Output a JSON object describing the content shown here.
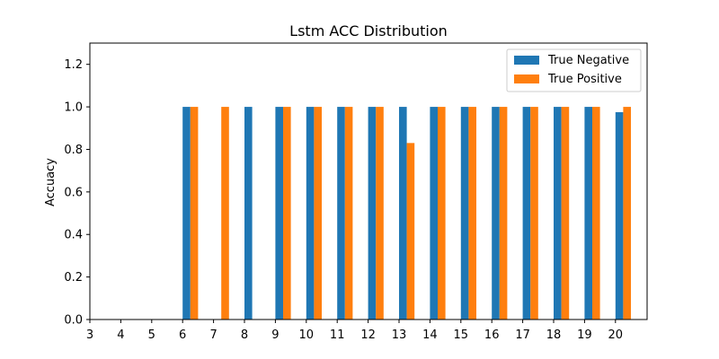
{
  "chart_data": {
    "type": "bar",
    "title": "Lstm ACC Distribution",
    "xlabel": "",
    "ylabel": "Accuacy",
    "categories": [
      "3",
      "4",
      "5",
      "6",
      "7",
      "8",
      "9",
      "10",
      "11",
      "12",
      "13",
      "14",
      "15",
      "16",
      "17",
      "18",
      "19",
      "20"
    ],
    "series": [
      {
        "name": "True Negative",
        "color": "#1f77b4",
        "values": [
          0,
          0,
          0,
          1.0,
          0,
          1.0,
          1.0,
          1.0,
          1.0,
          1.0,
          1.0,
          1.0,
          1.0,
          1.0,
          1.0,
          1.0,
          1.0,
          0.975
        ]
      },
      {
        "name": "True Positive",
        "color": "#ff7f0e",
        "values": [
          0,
          0,
          0,
          1.0,
          1.0,
          0,
          1.0,
          1.0,
          1.0,
          1.0,
          0.83,
          1.0,
          1.0,
          1.0,
          1.0,
          1.0,
          1.0,
          1.0
        ]
      }
    ],
    "ylim": [
      0,
      1.3
    ],
    "yticks": [
      "0.0",
      "0.2",
      "0.4",
      "0.6",
      "0.8",
      "1.0",
      "1.2"
    ],
    "grid": false,
    "legend_position": "top-right"
  }
}
